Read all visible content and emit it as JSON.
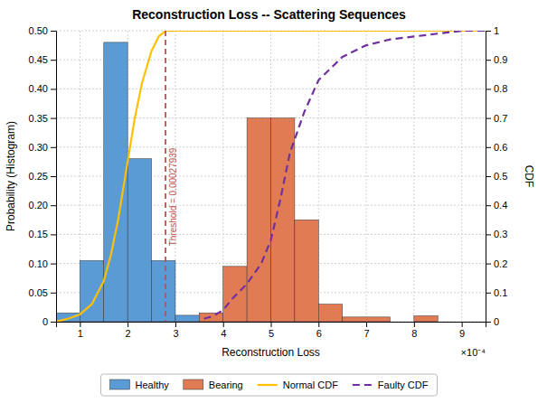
{
  "chart_data": {
    "type": "histogram",
    "title": "Reconstruction Loss -- Scattering Sequences",
    "xlabel": "Reconstruction Loss",
    "ylabel": "Probability (Histogram)",
    "y2label": "CDF",
    "annotations": [
      {
        "text": "×10⁻⁴"
      }
    ],
    "threshold": {
      "x": 0.00027939,
      "label": "Threshold = 0.00027939",
      "color": "#C0504D"
    },
    "series": [
      {
        "name": "Healthy",
        "type": "histogram",
        "color": "#5B9BD5",
        "bins": [
          5e-05,
          0.0001,
          0.00015,
          0.0002,
          0.00025,
          0.0003,
          0.00035
        ],
        "values": [
          0.015,
          0.105,
          0.48,
          0.28,
          0.105,
          0.011
        ]
      },
      {
        "name": "Bearing",
        "type": "histogram",
        "color": "#E07B54",
        "bins": [
          0.00035,
          0.0004,
          0.00045,
          0.0005,
          0.00055,
          0.0006,
          0.00065,
          0.00075,
          0.0008,
          0.00085
        ],
        "values": [
          0.015,
          0.095,
          0.35,
          0.35,
          0.175,
          0.03,
          0.008,
          null,
          0.01
        ]
      },
      {
        "name": "Normal CDF",
        "type": "line",
        "axis": "y2",
        "color": "#FFC000",
        "line_style": "solid",
        "x": [
          5e-05,
          7.5e-05,
          0.0001,
          0.000125,
          0.00015,
          0.000165,
          0.00018,
          0.0002,
          0.000215,
          0.00023,
          0.00025,
          0.000265,
          0.00028,
          0.0003,
          0.00095
        ],
        "values": [
          0,
          0.01,
          0.025,
          0.06,
          0.14,
          0.23,
          0.35,
          0.55,
          0.7,
          0.82,
          0.93,
          0.98,
          1,
          1,
          1
        ]
      },
      {
        "name": "Faulty CDF",
        "type": "line",
        "axis": "y2",
        "color": "#7030A0",
        "line_style": "dashed",
        "x": [
          0.00036,
          0.00038,
          0.0004,
          0.00042,
          0.00045,
          0.00048,
          0.0005,
          0.00052,
          0.00054,
          0.00057,
          0.0006,
          0.00065,
          0.0007,
          0.00075,
          0.0008,
          0.00085,
          0.0009,
          0.00095
        ],
        "values": [
          0.01,
          0.02,
          0.04,
          0.08,
          0.13,
          0.2,
          0.28,
          0.42,
          0.58,
          0.72,
          0.83,
          0.91,
          0.95,
          0.97,
          0.98,
          0.99,
          1,
          1
        ]
      }
    ],
    "xlim": [
      5e-05,
      0.00095
    ],
    "xticks": [
      {
        "value": 0.0001,
        "label": "1"
      },
      {
        "value": 0.0002,
        "label": "2"
      },
      {
        "value": 0.0003,
        "label": "3"
      },
      {
        "value": 0.0004,
        "label": "4"
      },
      {
        "value": 0.0005,
        "label": "5"
      },
      {
        "value": 0.0006,
        "label": "6"
      },
      {
        "value": 0.0007,
        "label": "7"
      },
      {
        "value": 0.0008,
        "label": "8"
      },
      {
        "value": 0.0009,
        "label": "9"
      }
    ],
    "ylim": [
      0,
      0.5
    ],
    "yticks": [
      0,
      0.05,
      {
        "value": 0.1,
        "label": "0.10"
      },
      0.15,
      {
        "value": 0.2,
        "label": "0.20"
      },
      0.25,
      {
        "value": 0.3,
        "label": "0.30"
      },
      0.35,
      {
        "value": 0.4,
        "label": "0.40"
      },
      0.45,
      {
        "value": 0.5,
        "label": "0.50"
      }
    ],
    "y2lim": [
      0,
      1
    ],
    "y2ticks": [
      0,
      0.1,
      0.2,
      0.3,
      0.4,
      0.5,
      0.6,
      0.7,
      0.8,
      0.9,
      1
    ],
    "grid": true,
    "legend": "bottom"
  }
}
